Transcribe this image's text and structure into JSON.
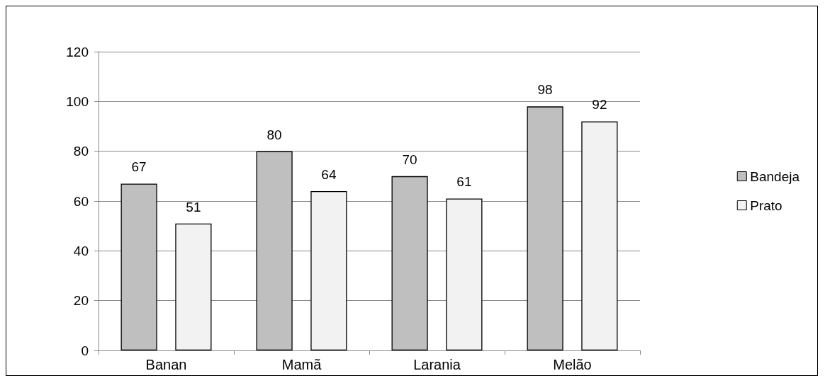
{
  "chart_data": {
    "type": "bar",
    "categories": [
      "Banan",
      "Mamã",
      "Larania",
      "Melão"
    ],
    "series": [
      {
        "name": "Bandeja",
        "color": "#bfbfbf",
        "values": [
          67,
          80,
          70,
          98
        ]
      },
      {
        "name": "Prato",
        "color": "#f2f2f2",
        "values": [
          51,
          64,
          61,
          92
        ]
      }
    ],
    "ylim": [
      0,
      120
    ],
    "yticks": [
      0,
      20,
      40,
      60,
      80,
      100,
      120
    ],
    "grid": "y",
    "legend": "right",
    "data_labels": true
  }
}
